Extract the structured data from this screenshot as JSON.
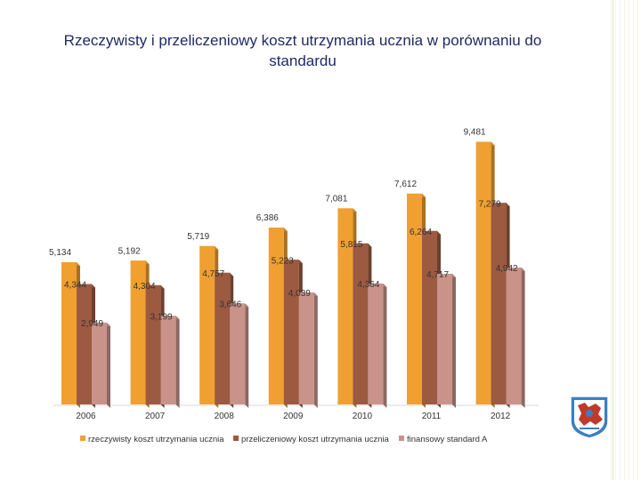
{
  "chart_data": {
    "type": "bar",
    "title": "Rzeczywisty i przeliczeniowy koszt utrzymania ucznia w porównaniu do standardu",
    "categories": [
      "2006",
      "2007",
      "2008",
      "2009",
      "2010",
      "2011",
      "2012"
    ],
    "series": [
      {
        "name": "rzeczywisty koszt utrzymania ucznia",
        "color": "#f0a030",
        "values": [
          5134,
          5192,
          5719,
          6386,
          7081,
          7612,
          9481
        ],
        "labels": [
          "5,134",
          "5,192",
          "5,719",
          "6,386",
          "7,081",
          "7,612",
          "9,481"
        ]
      },
      {
        "name": "przeliczeniowy koszt utrzymania ucznia",
        "color": "#9c5a40",
        "values": [
          4344,
          4304,
          4757,
          5223,
          5815,
          6264,
          7279
        ],
        "labels": [
          "4,344",
          "4,304",
          "4,757",
          "5,223",
          "5,815",
          "6,264",
          "7,279"
        ]
      },
      {
        "name": "finansowy standard A",
        "color": "#c9938a",
        "values": [
          2949,
          3199,
          3646,
          4039,
          4364,
          4717,
          4942
        ],
        "labels": [
          "2,949",
          "3,199",
          "3,646",
          "4,039",
          "4,364",
          "4,717",
          "4,942"
        ]
      }
    ],
    "ylim": [
      0,
      10000
    ],
    "grid": false,
    "legend_position": "bottom"
  },
  "decor": {
    "crest": "coat-of-arms-icon"
  }
}
